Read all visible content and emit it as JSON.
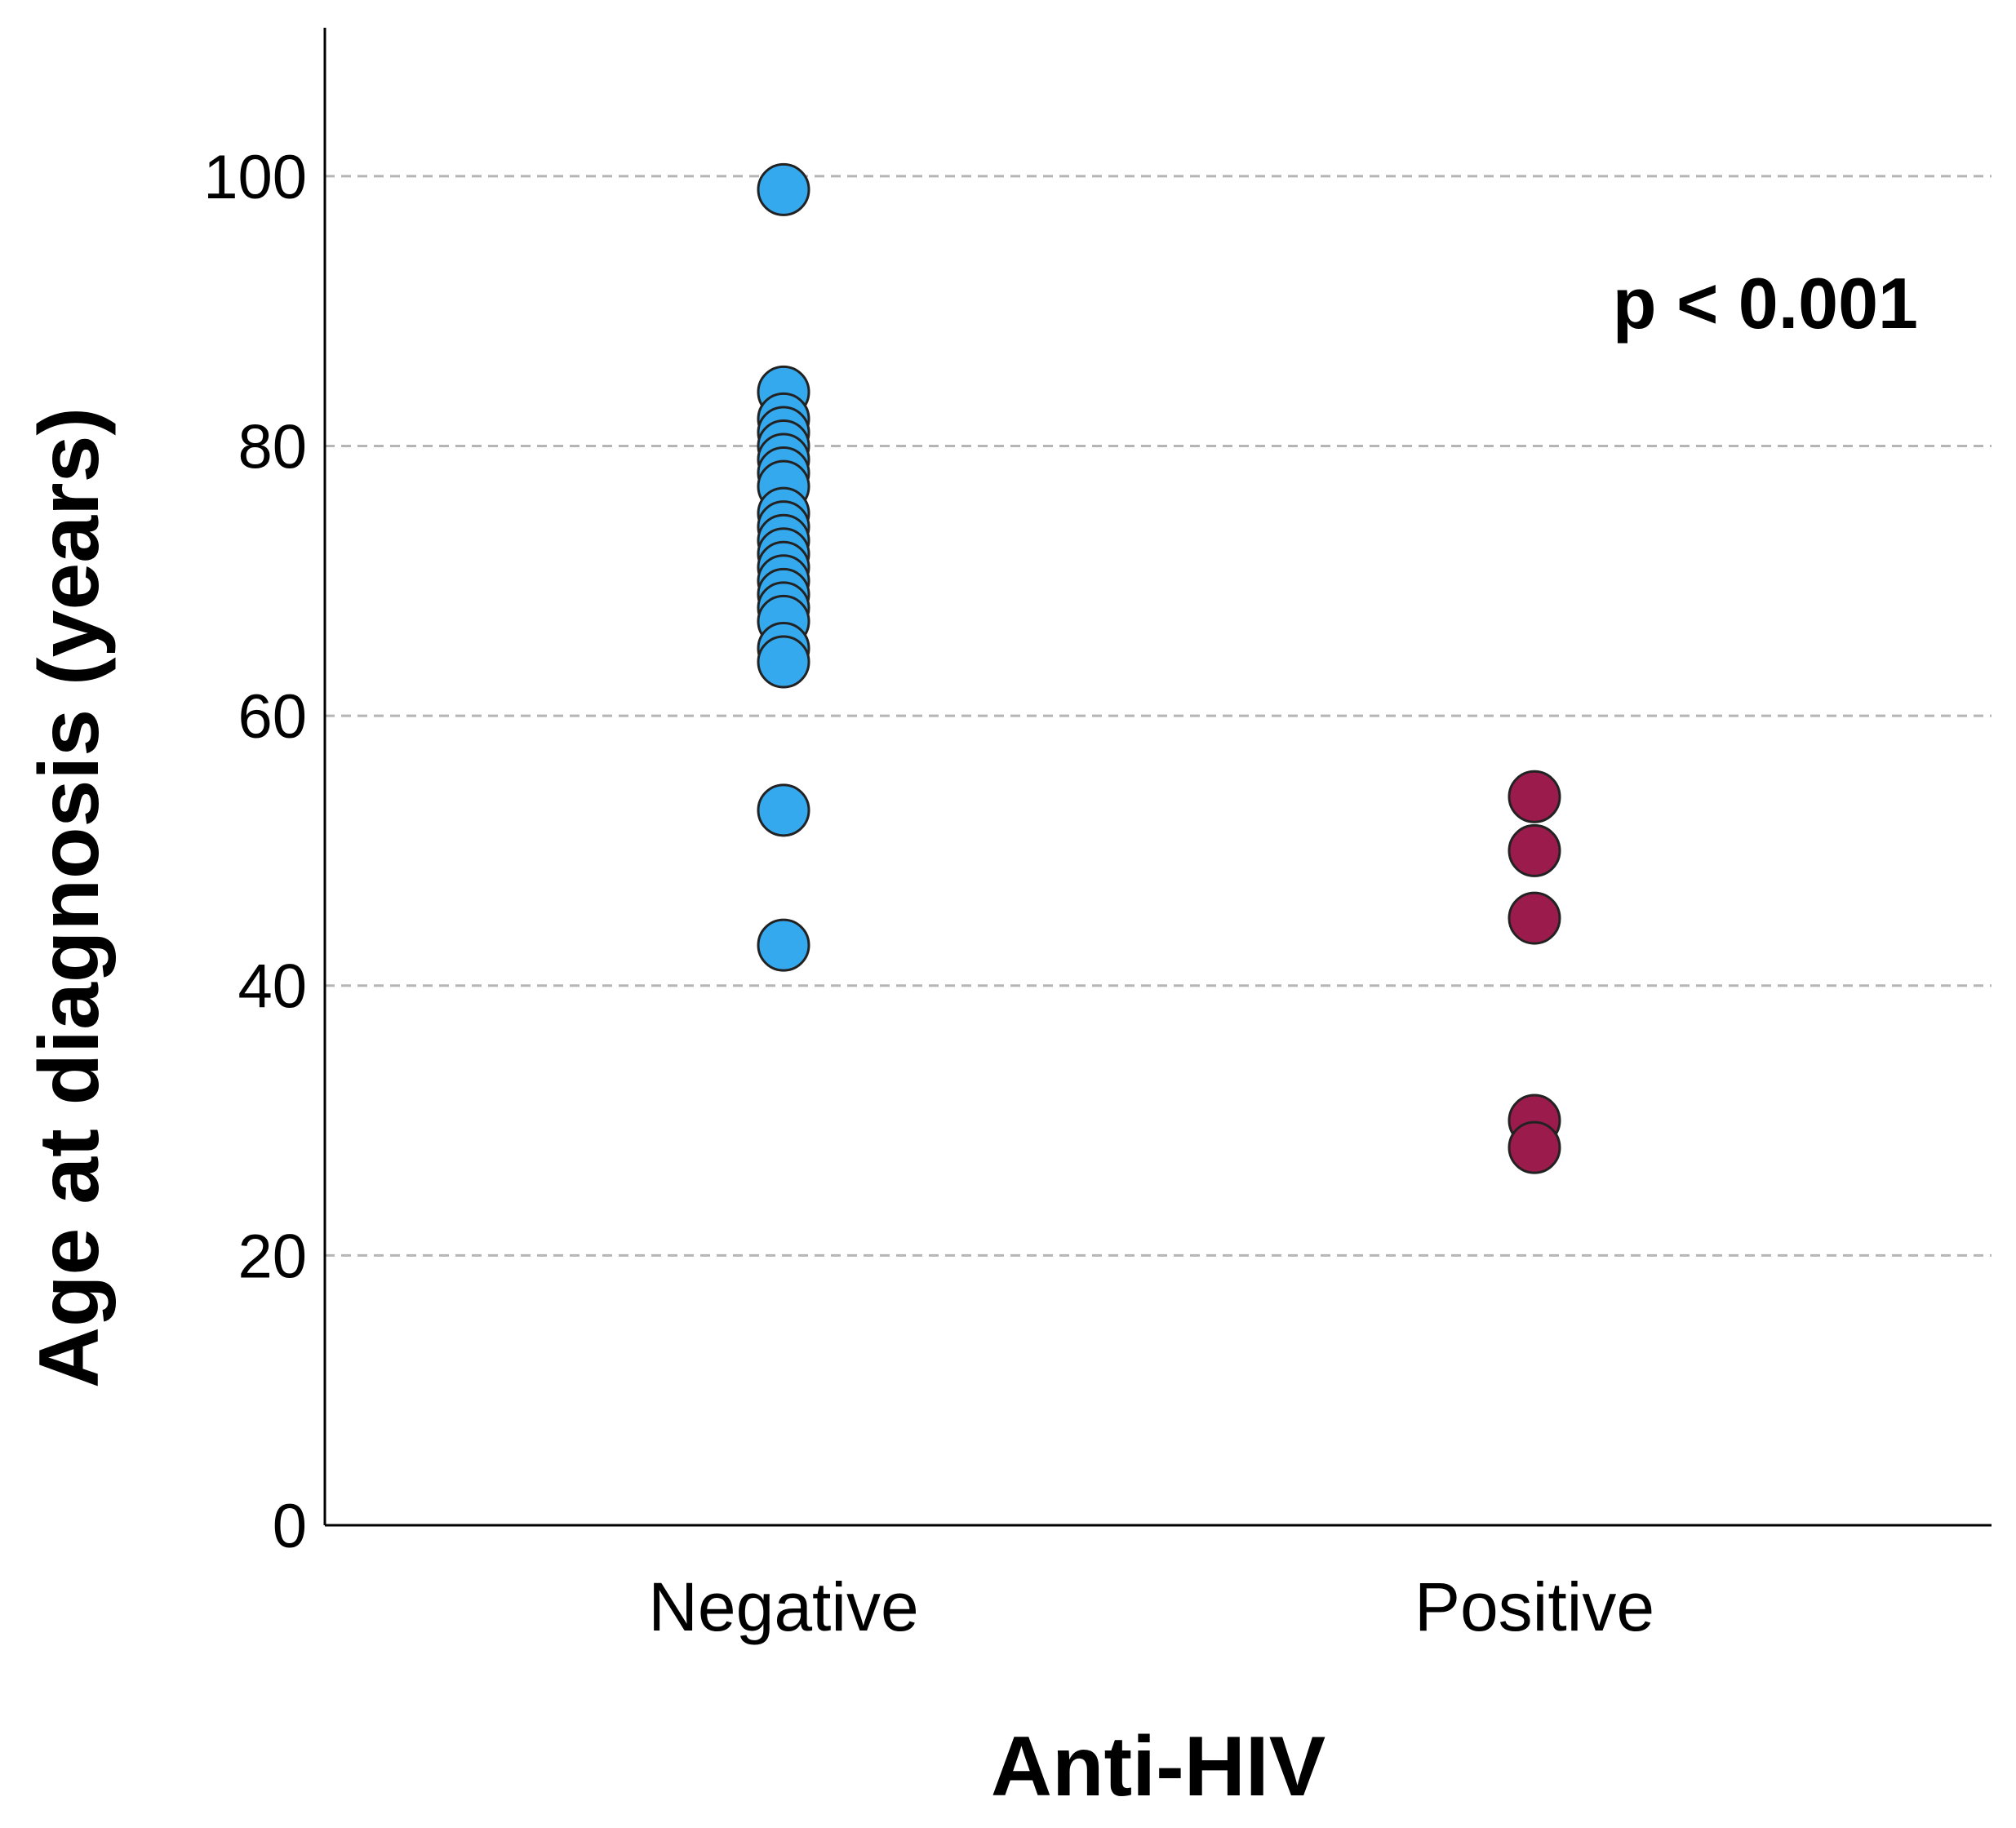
{
  "chart_data": {
    "type": "scatter",
    "title": "",
    "xlabel": "Anti-HIV",
    "ylabel": "Age at diagnosis (years)",
    "categories": [
      "Negative",
      "Positive"
    ],
    "ylim": [
      0,
      111
    ],
    "yticks": [
      0,
      20,
      40,
      60,
      80,
      100
    ],
    "grid": true,
    "grid_style": "dashed horizontal",
    "annotation": "p < 0.001",
    "series": [
      {
        "category": "Negative",
        "color": "#35a9ee",
        "values": [
          99,
          84,
          82,
          81,
          80,
          79,
          78,
          77,
          75,
          74,
          73,
          72,
          71,
          70,
          69,
          68,
          67,
          65,
          64,
          53,
          43
        ]
      },
      {
        "category": "Positive",
        "color": "#9b1b4c",
        "values": [
          54,
          50,
          45,
          30,
          28
        ]
      }
    ]
  }
}
